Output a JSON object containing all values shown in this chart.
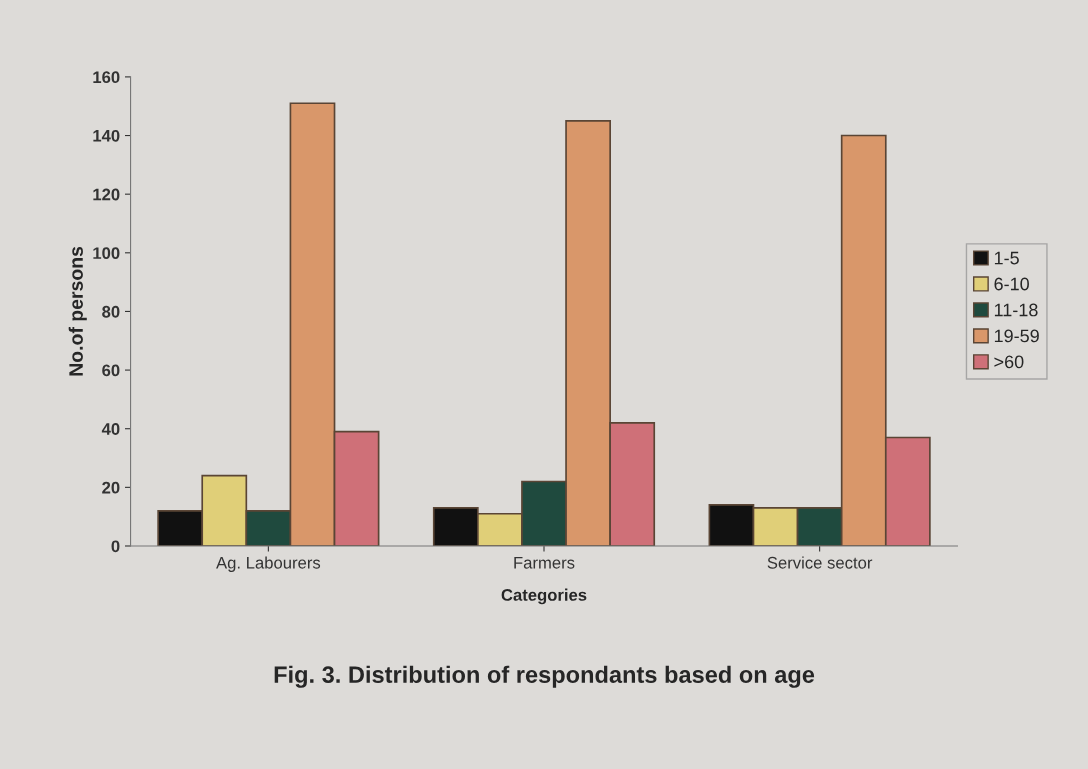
{
  "chart_data": {
    "type": "bar",
    "title": "Fig. 3. Distribution of respondants based on age",
    "xlabel": "Categories",
    "ylabel": "No.of persons",
    "categories": [
      "Ag. Labourers",
      "Farmers",
      "Service sector"
    ],
    "series": [
      {
        "name": "1-5",
        "color": "#111111",
        "values": [
          12,
          13,
          14
        ]
      },
      {
        "name": "6-10",
        "color": "#e0cf78",
        "values": [
          24,
          11,
          13
        ]
      },
      {
        "name": "11-18",
        "color": "#1f4a3e",
        "values": [
          12,
          22,
          13
        ]
      },
      {
        "name": "19-59",
        "color": "#d9976a",
        "values": [
          151,
          145,
          140
        ]
      },
      {
        "name": ">60",
        "color": "#cf7078",
        "values": [
          39,
          42,
          37
        ]
      }
    ],
    "ylim": [
      0,
      160
    ],
    "yticks": [
      0,
      20,
      40,
      60,
      80,
      100,
      120,
      140,
      160
    ],
    "grid": false,
    "legend": "right"
  }
}
